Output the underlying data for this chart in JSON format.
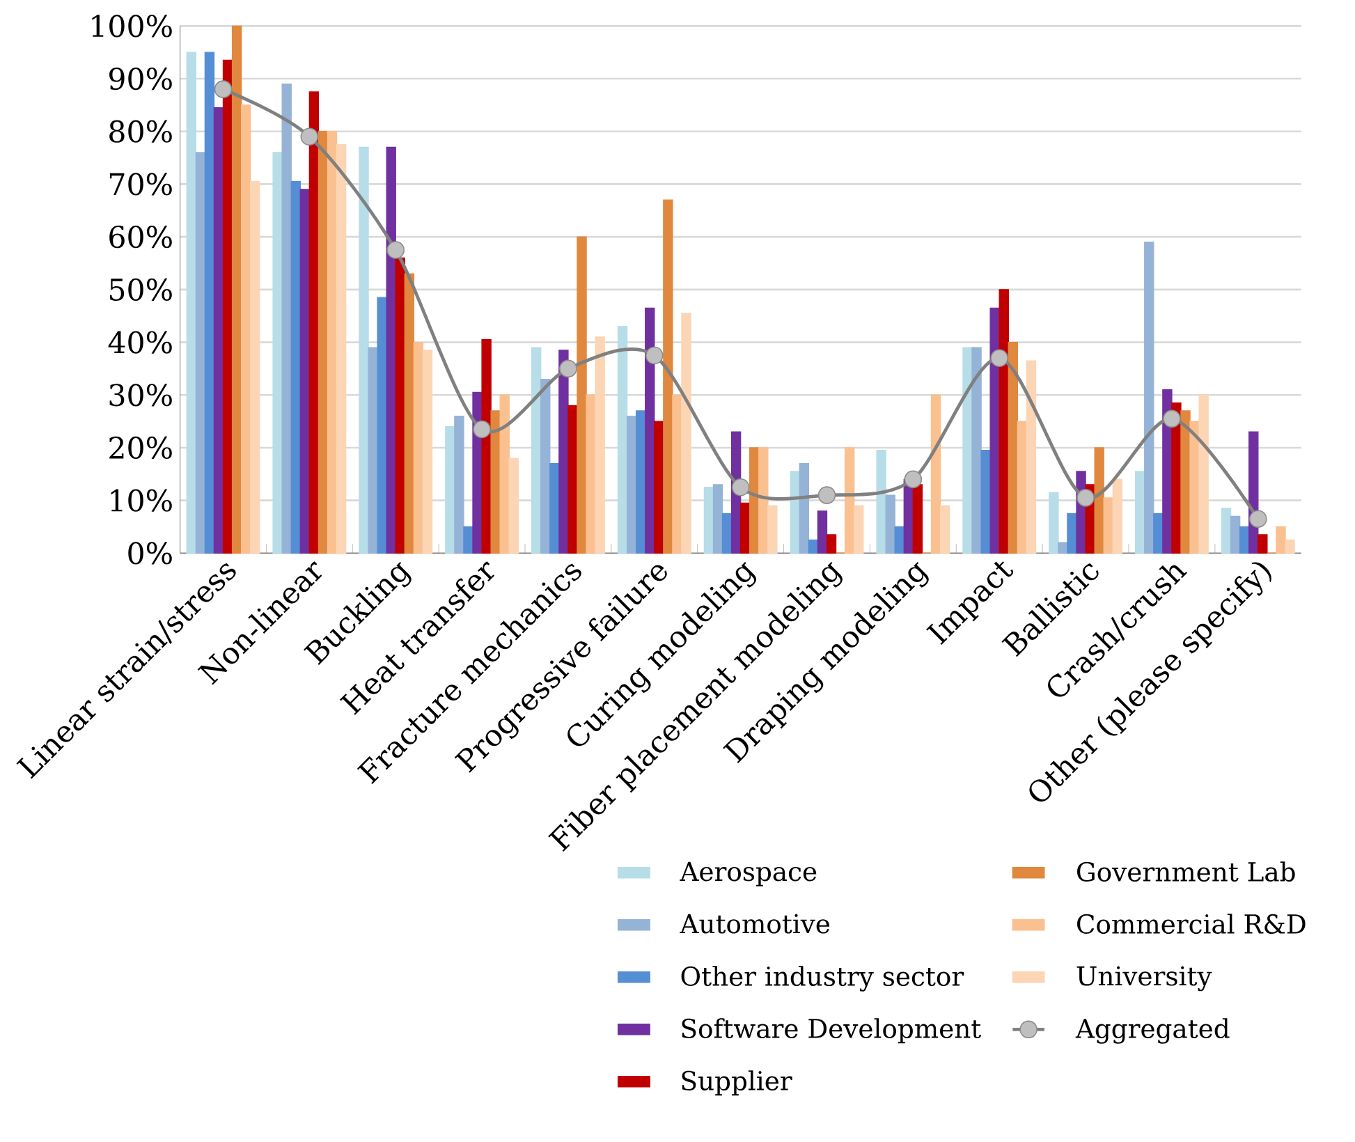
{
  "chart_data": {
    "type": "bar",
    "categories": [
      "Linear strain/stress",
      "Non-linear",
      "Buckling",
      "Heat transfer",
      "Fracture mechanics",
      "Progressive failure",
      "Curing modeling",
      "Fiber placement modeling",
      "Draping modeling",
      "Impact",
      "Ballistic",
      "Crash/crush",
      "Other (please specify)"
    ],
    "series": [
      {
        "name": "Aerospace",
        "color": "#b7dde8",
        "values": [
          95,
          76,
          77,
          24,
          39,
          43,
          12.5,
          15.5,
          19.5,
          39,
          11.5,
          15.5,
          8.5
        ]
      },
      {
        "name": "Automotive",
        "color": "#95b3d7",
        "values": [
          76,
          89,
          39,
          26,
          33,
          26,
          13,
          17,
          11,
          39,
          2,
          59,
          7
        ]
      },
      {
        "name": "Other industry sector",
        "color": "#558ed5",
        "values": [
          95,
          70.5,
          48.5,
          5,
          17,
          27,
          7.5,
          2.5,
          5,
          19.5,
          7.5,
          7.5,
          5
        ]
      },
      {
        "name": "Software Development",
        "color": "#7030a0",
        "values": [
          84.5,
          69,
          77,
          30.5,
          38.5,
          46.5,
          23,
          8,
          14,
          46.5,
          15.5,
          31,
          23
        ]
      },
      {
        "name": "Supplier",
        "color": "#c00000",
        "values": [
          93.5,
          87.5,
          56,
          40.5,
          28,
          25,
          9.5,
          3.5,
          13,
          50,
          13,
          28.5,
          3.5
        ]
      },
      {
        "name": "Government Lab",
        "color": "#e0883e",
        "values": [
          100,
          80,
          53,
          27,
          60,
          67,
          20,
          0,
          0,
          40,
          20,
          27,
          0
        ]
      },
      {
        "name": "Commercial R&D",
        "color": "#fac090",
        "values": [
          85,
          80,
          40,
          30,
          30,
          30,
          20,
          20,
          30,
          25,
          10.5,
          25,
          5
        ]
      },
      {
        "name": "University",
        "color": "#fcd5b5",
        "values": [
          70.5,
          77.5,
          38.5,
          18,
          41,
          45.5,
          9,
          9,
          9,
          36.5,
          14,
          30,
          2.5
        ]
      },
      {
        "name": "Aggregated",
        "type": "line",
        "color": "#808080",
        "marker": "circle",
        "values": [
          88,
          79,
          57.5,
          23.5,
          35,
          37.5,
          12.5,
          11,
          14,
          37,
          10.5,
          25.5,
          6.5
        ]
      }
    ],
    "ylim": [
      0,
      100
    ],
    "yticks": [
      {
        "value": 0,
        "label": "0%"
      },
      {
        "value": 10,
        "label": "10%"
      },
      {
        "value": 20,
        "label": "20%"
      },
      {
        "value": 30,
        "label": "30%"
      },
      {
        "value": 40,
        "label": "40%"
      },
      {
        "value": 50,
        "label": "50%"
      },
      {
        "value": 60,
        "label": "60%"
      },
      {
        "value": 70,
        "label": "70%"
      },
      {
        "value": 80,
        "label": "80%"
      },
      {
        "value": 90,
        "label": "90%"
      },
      {
        "value": 100,
        "label": "100%"
      }
    ],
    "grid": "y",
    "legend": "bottom"
  }
}
